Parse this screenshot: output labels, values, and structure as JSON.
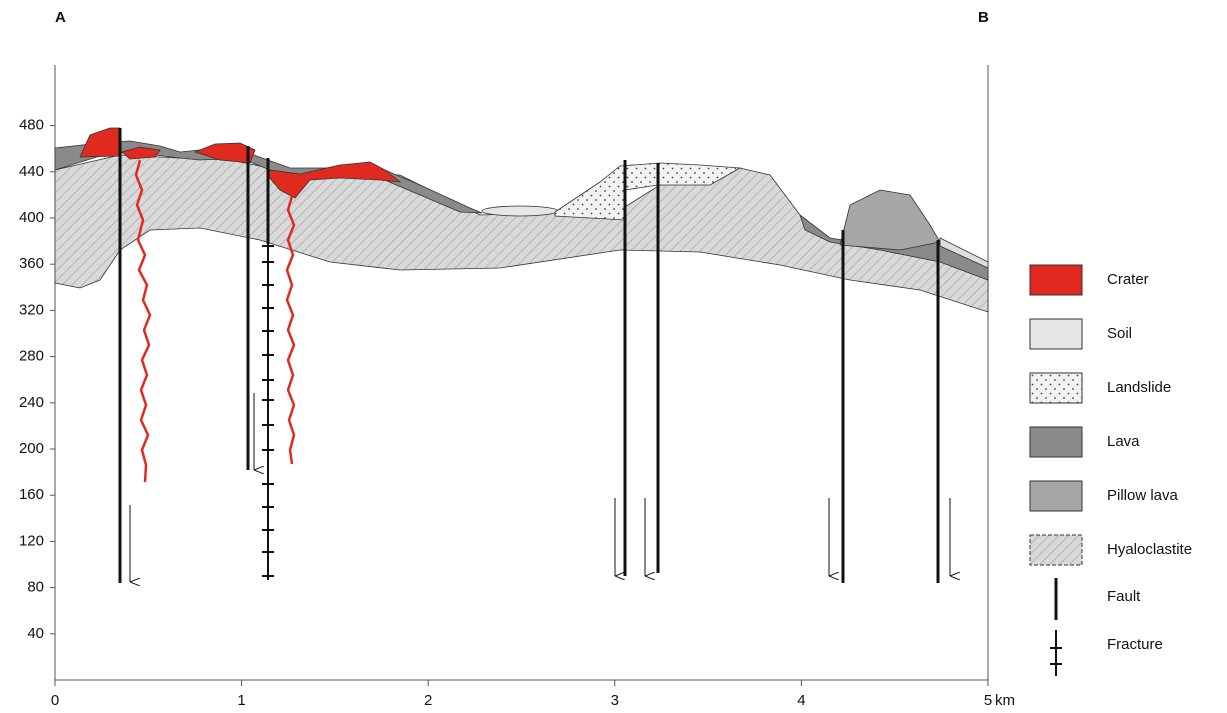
{
  "section": {
    "start_label": "A",
    "end_label": "B"
  },
  "y_axis": {
    "ticks": [
      40,
      80,
      120,
      160,
      200,
      240,
      280,
      320,
      360,
      400,
      440,
      480
    ]
  },
  "x_axis": {
    "ticks": [
      0,
      1,
      2,
      3,
      4,
      5
    ],
    "unit": "km"
  },
  "legend": [
    "Crater",
    "Soil",
    "Landslide",
    "Lava",
    "Pillow lava",
    "Hyaloclastite",
    "Fault",
    "Fracture"
  ]
}
